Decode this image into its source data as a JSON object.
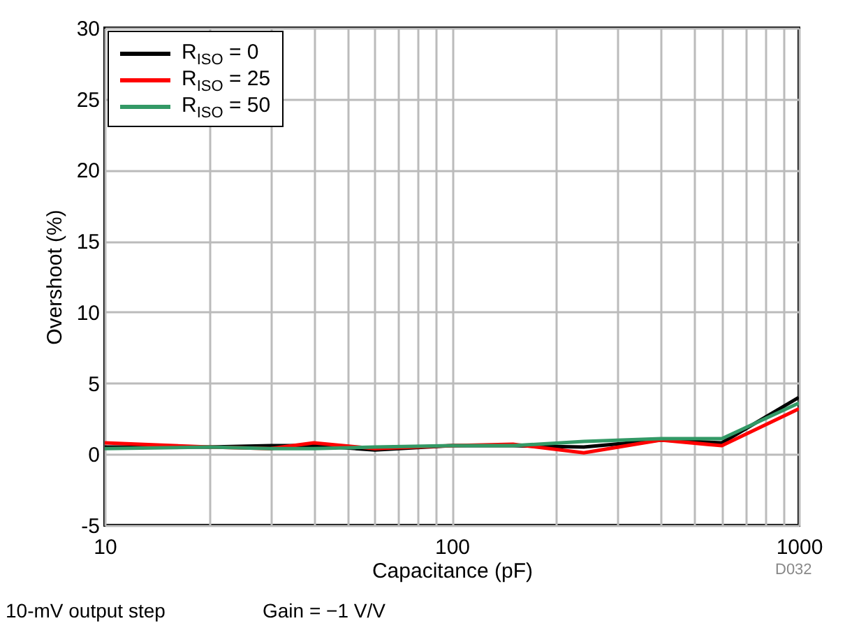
{
  "chart_data": {
    "type": "line",
    "xlabel": "Capacitance (pF)",
    "ylabel": "Overshoot (%)",
    "log": "x",
    "grid": true,
    "legend": "top left",
    "line_style": "solid",
    "marker": "none",
    "annotations": [
      "D032",
      "10-mV output step",
      "Gain = −1 V/V"
    ],
    "x": [
      10,
      20,
      30,
      40,
      60,
      100,
      150,
      240,
      400,
      600,
      1000
    ],
    "xlim": [
      10,
      1000
    ],
    "xticks": [
      10,
      {
        "value": 20,
        "label": null
      },
      {
        "value": 30,
        "label": null
      },
      {
        "value": 40,
        "label": null
      },
      {
        "value": 50,
        "label": null
      },
      {
        "value": 60,
        "label": null
      },
      {
        "value": 70,
        "label": null
      },
      {
        "value": 80,
        "label": null
      },
      {
        "value": 90,
        "label": null
      },
      100,
      {
        "value": 200,
        "label": null
      },
      {
        "value": 300,
        "label": null
      },
      {
        "value": 400,
        "label": null
      },
      {
        "value": 500,
        "label": null
      },
      {
        "value": 600,
        "label": null
      },
      {
        "value": 700,
        "label": null
      },
      {
        "value": 800,
        "label": null
      },
      {
        "value": 900,
        "label": null
      },
      1000
    ],
    "ylim": [
      -5,
      30
    ],
    "yticks": [
      -5,
      0,
      5,
      10,
      15,
      20,
      25,
      30
    ],
    "series": [
      {
        "name": "R$_{ISO}$ = 0",
        "color": "#000000",
        "values": [
          0.5,
          0.5,
          0.6,
          0.6,
          0.3,
          0.6,
          0.6,
          0.5,
          1.0,
          0.8,
          4.0
        ]
      },
      {
        "name": "R$_{ISO}$ = 25",
        "color": "#ff0000",
        "values": [
          0.8,
          0.5,
          0.4,
          0.8,
          0.4,
          0.6,
          0.7,
          0.1,
          1.0,
          0.6,
          3.2
        ]
      },
      {
        "name": "R$_{ISO}$ = 50",
        "color": "#339966",
        "values": [
          0.4,
          0.5,
          0.4,
          0.4,
          0.5,
          0.6,
          0.6,
          0.9,
          1.1,
          1.1,
          3.6
        ]
      }
    ]
  }
}
